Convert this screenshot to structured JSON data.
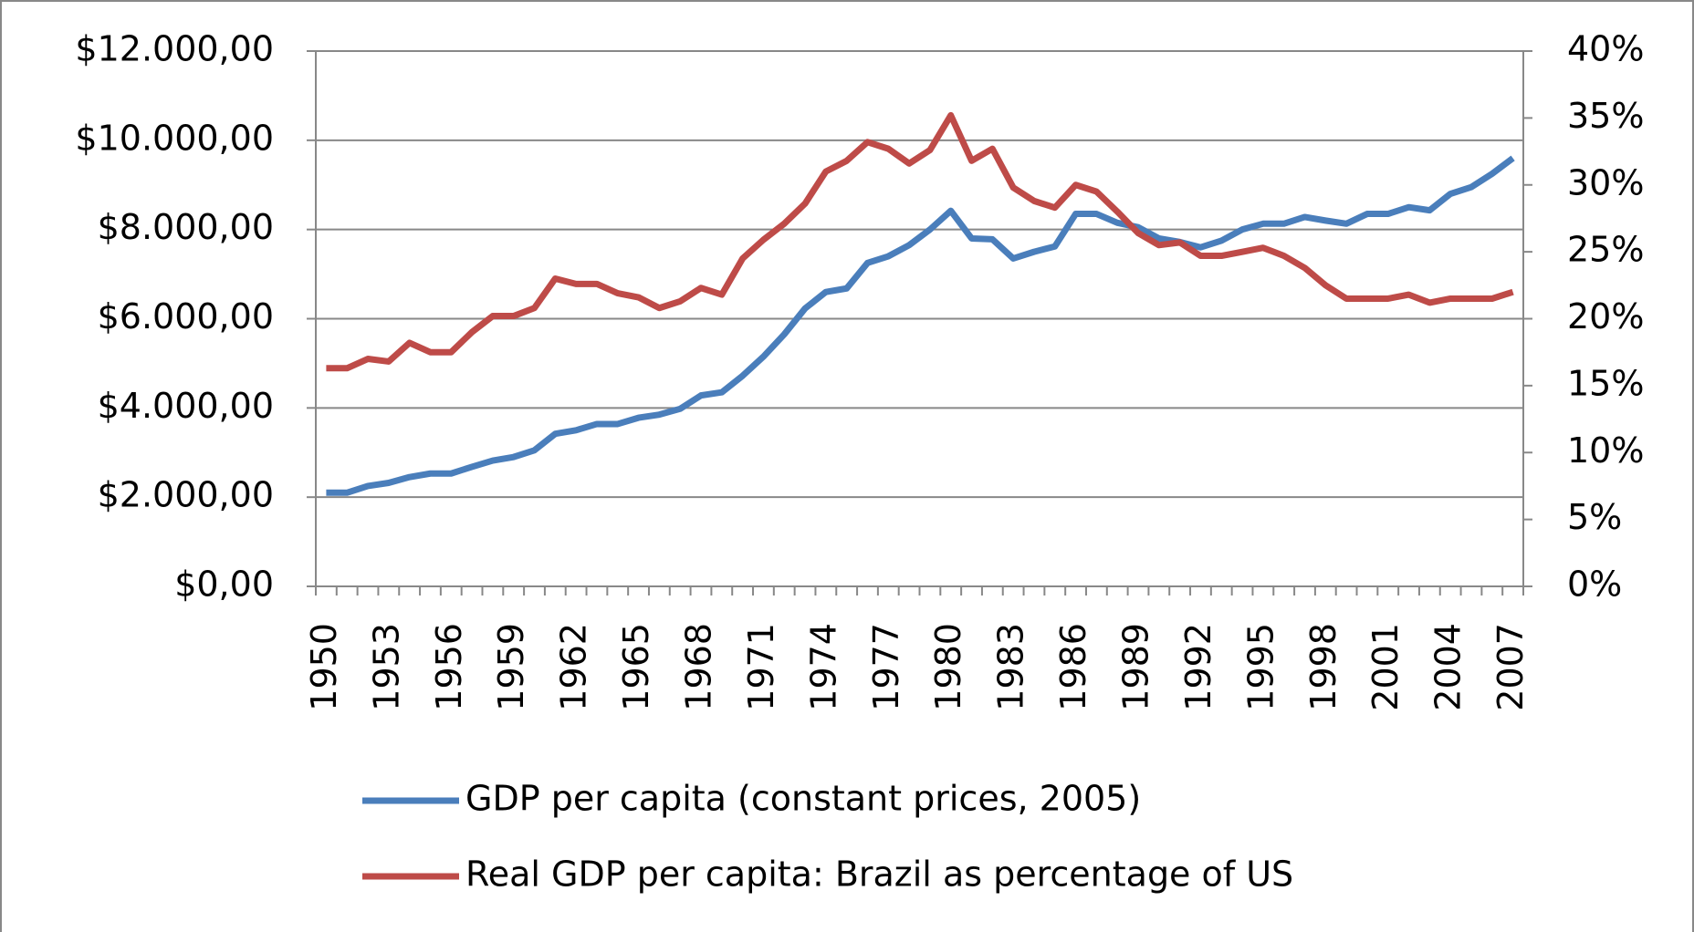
{
  "chart_data": {
    "type": "line",
    "categories": [
      "1950",
      null,
      null,
      "1953",
      null,
      null,
      "1956",
      null,
      null,
      "1959",
      null,
      null,
      "1962",
      null,
      null,
      "1965",
      null,
      null,
      "1968",
      null,
      null,
      "1971",
      null,
      null,
      "1974",
      null,
      null,
      "1977",
      null,
      null,
      "1980",
      null,
      null,
      "1983",
      null,
      null,
      "1986",
      null,
      null,
      "1989",
      null,
      null,
      "1992",
      null,
      null,
      "1995",
      null,
      null,
      "1998",
      null,
      null,
      "2001",
      null,
      null,
      "2004",
      null,
      null,
      "2007"
    ],
    "series": [
      {
        "name": "GDP per capita (constant prices, 2005)",
        "color": "#4a7ebb",
        "values": [
          2100,
          2100,
          2250,
          2320,
          2450,
          2530,
          2530,
          2680,
          2820,
          2900,
          3050,
          3420,
          3500,
          3640,
          3640,
          3780,
          3850,
          3980,
          4280,
          4350,
          4720,
          5150,
          5650,
          6230,
          6600,
          6680,
          7250,
          7400,
          7650,
          8000,
          8420,
          7800,
          7780,
          7350,
          7500,
          7620,
          8350,
          8350,
          8150,
          8050,
          7800,
          7720,
          7600,
          7750,
          8000,
          8130,
          8130,
          8280,
          8200,
          8130,
          8350,
          8350,
          8500,
          8430,
          8800,
          8950,
          9250,
          9600
        ]
      },
      {
        "name": "Real GDP per capita:  Brazil as percentage of US",
        "color": "#be4b48",
        "axis": "y2",
        "values": [
          16.3,
          16.3,
          17.0,
          16.8,
          18.2,
          17.5,
          17.5,
          19.0,
          20.2,
          20.2,
          20.8,
          23.0,
          22.6,
          22.6,
          21.9,
          21.6,
          20.8,
          21.3,
          22.3,
          21.8,
          24.5,
          25.9,
          27.1,
          28.6,
          31.0,
          31.8,
          33.2,
          32.7,
          31.6,
          32.6,
          35.2,
          31.8,
          32.7,
          29.8,
          28.8,
          28.3,
          30.0,
          29.5,
          28.0,
          26.4,
          25.5,
          25.7,
          24.7,
          24.7,
          25.0,
          25.3,
          24.7,
          23.8,
          22.5,
          21.5,
          21.5,
          21.5,
          21.8,
          21.2,
          21.5,
          21.5,
          21.5,
          22.0
        ]
      }
    ],
    "ylim": [
      0,
      12000
    ],
    "yticks": [
      {
        "value": 0,
        "label": "$0,00"
      },
      {
        "value": 2000,
        "label": "$2.000,00"
      },
      {
        "value": 4000,
        "label": "$4.000,00"
      },
      {
        "value": 6000,
        "label": "$6.000,00"
      },
      {
        "value": 8000,
        "label": "$8.000,00"
      },
      {
        "value": 10000,
        "label": "$10.000,00"
      },
      {
        "value": 12000,
        "label": "$12.000,00"
      }
    ],
    "y2lim": [
      0,
      40
    ],
    "y2ticks": [
      {
        "value": 0,
        "label": "0%"
      },
      {
        "value": 5,
        "label": "5%"
      },
      {
        "value": 10,
        "label": "10%"
      },
      {
        "value": 15,
        "label": "15%"
      },
      {
        "value": 20,
        "label": "20%"
      },
      {
        "value": 25,
        "label": "25%"
      },
      {
        "value": 30,
        "label": "30%"
      },
      {
        "value": 35,
        "label": "35%"
      },
      {
        "value": 40,
        "label": "40%"
      }
    ],
    "grid": true,
    "legend": "bottom"
  }
}
